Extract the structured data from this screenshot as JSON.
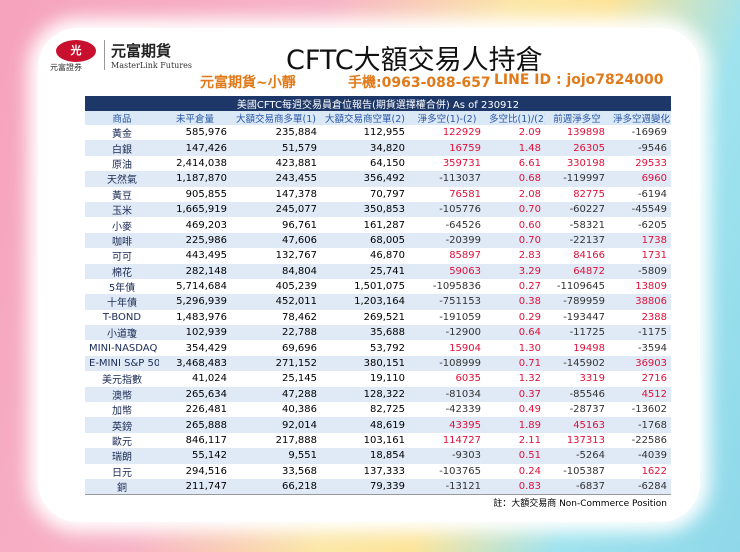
{
  "header": {
    "logo_mark": "光",
    "logo_sub": "元富證券",
    "brand_cn": "元富期貨",
    "brand_en": "MasterLink Futures",
    "title": "CFTC大額交易人持倉",
    "contact_name": "元富期貨~小靜",
    "contact_phone": "手機:0963-088-657",
    "contact_line": "LINE ID : jojo7824000"
  },
  "table": {
    "caption": "美國CFTC每週交易員倉位報告(期貨選擇權合併) As of  230912",
    "columns": [
      "商品",
      "未平倉量",
      "大額交易商多單(1)",
      "大額交易商空單(2)",
      "淨多空(1)-(2)",
      "多空比(1)/(2)",
      "前週淨多空",
      "淨多空週變化"
    ],
    "rows": [
      [
        "黃金",
        "585,976",
        "235,884",
        "112,955",
        "122929",
        "2.09",
        "139898",
        "-16969"
      ],
      [
        "白銀",
        "147,426",
        "51,579",
        "34,820",
        "16759",
        "1.48",
        "26305",
        "-9546"
      ],
      [
        "原油",
        "2,414,038",
        "423,881",
        "64,150",
        "359731",
        "6.61",
        "330198",
        "29533"
      ],
      [
        "天然氣",
        "1,187,870",
        "243,455",
        "356,492",
        "-113037",
        "0.68",
        "-119997",
        "6960"
      ],
      [
        "黃豆",
        "905,855",
        "147,378",
        "70,797",
        "76581",
        "2.08",
        "82775",
        "-6194"
      ],
      [
        "玉米",
        "1,665,919",
        "245,077",
        "350,853",
        "-105776",
        "0.70",
        "-60227",
        "-45549"
      ],
      [
        "小麥",
        "469,203",
        "96,761",
        "161,287",
        "-64526",
        "0.60",
        "-58321",
        "-6205"
      ],
      [
        "咖啡",
        "225,986",
        "47,606",
        "68,005",
        "-20399",
        "0.70",
        "-22137",
        "1738"
      ],
      [
        "可可",
        "443,495",
        "132,767",
        "46,870",
        "85897",
        "2.83",
        "84166",
        "1731"
      ],
      [
        "棉花",
        "282,148",
        "84,804",
        "25,741",
        "59063",
        "3.29",
        "64872",
        "-5809"
      ],
      [
        "5年債",
        "5,714,684",
        "405,239",
        "1,501,075",
        "-1095836",
        "0.27",
        "-1109645",
        "13809"
      ],
      [
        "十年債",
        "5,296,939",
        "452,011",
        "1,203,164",
        "-751153",
        "0.38",
        "-789959",
        "38806"
      ],
      [
        "T-BOND",
        "1,483,976",
        "78,462",
        "269,521",
        "-191059",
        "0.29",
        "-193447",
        "2388"
      ],
      [
        "小道瓊",
        "102,939",
        "22,788",
        "35,688",
        "-12900",
        "0.64",
        "-11725",
        "-1175"
      ],
      [
        "MINI-NASDAQ",
        "354,429",
        "69,696",
        "53,792",
        "15904",
        "1.30",
        "19498",
        "-3594"
      ],
      [
        "E-MINI S&P 500",
        "3,468,483",
        "271,152",
        "380,151",
        "-108999",
        "0.71",
        "-145902",
        "36903"
      ],
      [
        "美元指數",
        "41,024",
        "25,145",
        "19,110",
        "6035",
        "1.32",
        "3319",
        "2716"
      ],
      [
        "澳幣",
        "265,634",
        "47,288",
        "128,322",
        "-81034",
        "0.37",
        "-85546",
        "4512"
      ],
      [
        "加幣",
        "226,481",
        "40,386",
        "82,725",
        "-42339",
        "0.49",
        "-28737",
        "-13602"
      ],
      [
        "英鎊",
        "265,888",
        "92,014",
        "48,619",
        "43395",
        "1.89",
        "45163",
        "-1768"
      ],
      [
        "歐元",
        "846,117",
        "217,888",
        "103,161",
        "114727",
        "2.11",
        "137313",
        "-22586"
      ],
      [
        "瑞朗",
        "55,142",
        "9,551",
        "18,854",
        "-9303",
        "0.51",
        "-5264",
        "-4039"
      ],
      [
        "日元",
        "294,516",
        "33,568",
        "137,333",
        "-103765",
        "0.24",
        "-105387",
        "1622"
      ],
      [
        "銅",
        "211,747",
        "66,218",
        "79,339",
        "-13121",
        "0.83",
        "-6837",
        "-6284"
      ]
    ],
    "footnote": "註：大額交易商 Non-Commerce Position"
  }
}
